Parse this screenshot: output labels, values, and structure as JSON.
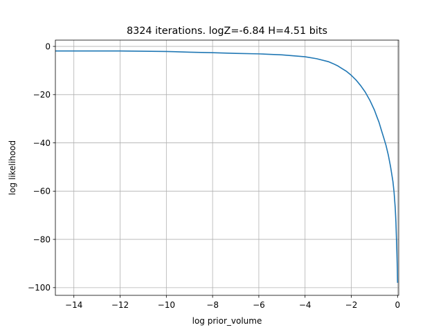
{
  "chart_data": {
    "type": "line",
    "title": "8324 iterations. logZ=-6.84 H=4.51 bits",
    "xlabel": "log prior_volume",
    "ylabel": "log likelihood",
    "xlim": [
      -14.8,
      0.05
    ],
    "ylim": [
      -103.2,
      2.6
    ],
    "grid": true,
    "x_ticks": [
      -14,
      -12,
      -10,
      -8,
      -6,
      -4,
      -2,
      0
    ],
    "x_tick_labels": [
      "−14",
      "−12",
      "−10",
      "−8",
      "−6",
      "−4",
      "−2",
      "0"
    ],
    "y_ticks": [
      0,
      -20,
      -40,
      -60,
      -80,
      -100
    ],
    "y_tick_labels": [
      "0",
      "−20",
      "−40",
      "−60",
      "−80",
      "−100"
    ],
    "series": [
      {
        "color": "#1f77b4",
        "x": [
          -14.8,
          -12,
          -10,
          -9,
          -8,
          -7,
          -6,
          -5,
          -4.5,
          -4,
          -3.5,
          -3,
          -2.8,
          -2.6,
          -2.4,
          -2.2,
          -2,
          -1.8,
          -1.6,
          -1.4,
          -1.2,
          -1,
          -0.9,
          -0.8,
          -0.7,
          -0.6,
          -0.5,
          -0.4,
          -0.3,
          -0.2,
          -0.15,
          -0.1,
          -0.07,
          -0.05,
          -0.03,
          -0.01,
          0
        ],
        "y": [
          -1.9,
          -1.9,
          -2.1,
          -2.4,
          -2.6,
          -2.9,
          -3.1,
          -3.5,
          -3.9,
          -4.3,
          -5.1,
          -6.3,
          -7.1,
          -8.0,
          -9.2,
          -10.4,
          -12.0,
          -13.9,
          -16.2,
          -18.9,
          -22.3,
          -26.4,
          -29.0,
          -31.5,
          -34.7,
          -37.8,
          -41.0,
          -45.0,
          -50.0,
          -56.0,
          -60.5,
          -67.0,
          -73.0,
          -79.0,
          -85.0,
          -92.0,
          -98.0
        ]
      }
    ]
  }
}
